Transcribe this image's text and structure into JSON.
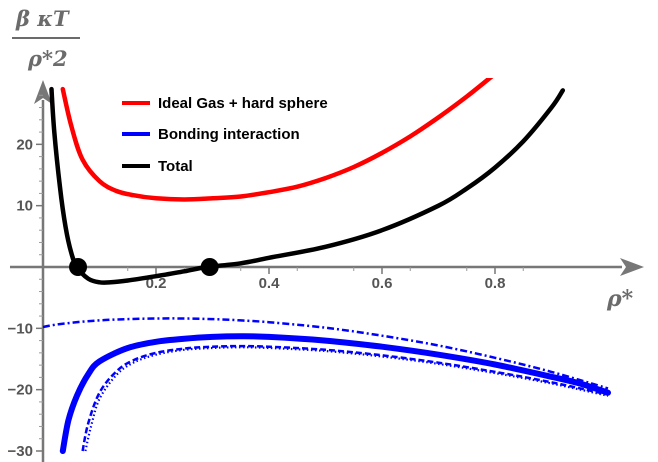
{
  "chart_data": {
    "type": "line",
    "xlabel": "ρ*",
    "ylabel_num": "β κT",
    "ylabel_den": "ρ*2",
    "xlim": [
      -0.05,
      1.0
    ],
    "ylim": [
      -30,
      29
    ],
    "x_ticks": [
      0.2,
      0.4,
      0.6,
      0.8
    ],
    "x_tick_labels": [
      "0.2",
      "0.4",
      "0.6",
      "0.8"
    ],
    "y_ticks": [
      -30,
      -20,
      -10,
      10,
      20
    ],
    "y_tick_labels": [
      "−30",
      "−20",
      "−10",
      "10",
      "20"
    ],
    "grid": false,
    "legend_position": "top-left",
    "legend": [
      {
        "name": "Ideal Gas + hard sphere",
        "color": "#ff0000"
      },
      {
        "name": "Bonding interaction",
        "color": "#0000ff"
      },
      {
        "name": "Total",
        "color": "#000000"
      }
    ],
    "series": [
      {
        "name": "Ideal Gas + hard sphere",
        "color": "#ff0000",
        "style": "solid",
        "x": [
          0.035,
          0.05,
          0.07,
          0.1,
          0.13,
          0.16,
          0.2,
          0.25,
          0.3,
          0.35,
          0.4,
          0.45,
          0.5,
          0.55,
          0.6,
          0.65,
          0.7,
          0.75,
          0.8
        ],
        "y": [
          29,
          23,
          17.5,
          14,
          12.4,
          11.7,
          11.2,
          11.0,
          11.2,
          11.5,
          12.2,
          13.1,
          14.5,
          16.3,
          18.6,
          21.3,
          24.4,
          27.8,
          31.5
        ]
      },
      {
        "name": "Bonding interaction",
        "color": "#0000ff",
        "style": "solid-thick",
        "x": [
          0.035,
          0.045,
          0.06,
          0.08,
          0.1,
          0.15,
          0.2,
          0.25,
          0.3,
          0.35,
          0.4,
          0.5,
          0.6,
          0.7,
          0.8,
          0.9,
          0.95,
          1.0
        ],
        "y": [
          -30,
          -25,
          -21,
          -17.5,
          -15.4,
          -13.2,
          -12.2,
          -11.7,
          -11.4,
          -11.3,
          -11.4,
          -12.0,
          -13.0,
          -14.3,
          -15.9,
          -17.9,
          -19.0,
          -20.5
        ]
      },
      {
        "name": "Bonding interaction (dash-dot)",
        "color": "#0000ff",
        "style": "dashdot",
        "x": [
          -0.05,
          0.0,
          0.05,
          0.1,
          0.15,
          0.2,
          0.25,
          0.3,
          0.35,
          0.4,
          0.5,
          0.6,
          0.7,
          0.8,
          0.9,
          1.0
        ],
        "y": [
          -11.5,
          -9.8,
          -9.1,
          -8.7,
          -8.5,
          -8.4,
          -8.4,
          -8.5,
          -8.7,
          -9.0,
          -9.9,
          -11.2,
          -12.8,
          -14.8,
          -17.1,
          -19.8
        ]
      },
      {
        "name": "Bonding interaction (dashed)",
        "color": "#0000ff",
        "style": "dashed",
        "x": [
          0.07,
          0.08,
          0.1,
          0.13,
          0.16,
          0.2,
          0.25,
          0.3,
          0.35,
          0.4,
          0.5,
          0.6,
          0.7,
          0.8,
          0.9,
          1.0
        ],
        "y": [
          -30,
          -25.5,
          -20.5,
          -17.0,
          -15.2,
          -14.0,
          -13.3,
          -13.0,
          -12.9,
          -13.0,
          -13.5,
          -14.4,
          -15.6,
          -17.1,
          -18.8,
          -20.8
        ]
      },
      {
        "name": "Bonding interaction (dotted)",
        "color": "#0000ff",
        "style": "dotted",
        "x": [
          0.075,
          0.085,
          0.1,
          0.13,
          0.16,
          0.2,
          0.25,
          0.3,
          0.35,
          0.4,
          0.5,
          0.6,
          0.7,
          0.8,
          0.9,
          1.0
        ],
        "y": [
          -30,
          -26,
          -21.5,
          -17.6,
          -15.6,
          -14.3,
          -13.5,
          -13.2,
          -13.1,
          -13.2,
          -13.7,
          -14.6,
          -15.8,
          -17.3,
          -19.0,
          -21.0
        ]
      },
      {
        "name": "Total",
        "color": "#000000",
        "style": "solid",
        "x": [
          0.015,
          0.02,
          0.03,
          0.04,
          0.05,
          0.06,
          0.08,
          0.1,
          0.12,
          0.15,
          0.2,
          0.25,
          0.29,
          0.35,
          0.4,
          0.5,
          0.6,
          0.7,
          0.75,
          0.8,
          0.85,
          0.9,
          0.92
        ],
        "y": [
          29,
          22,
          13,
          6.5,
          2.3,
          0.0,
          -1.9,
          -2.5,
          -2.5,
          -2.2,
          -1.5,
          -0.7,
          0.0,
          0.6,
          1.5,
          3.3,
          6.0,
          10.0,
          12.8,
          16.2,
          20.5,
          26.0,
          28.8
        ]
      }
    ],
    "markers": [
      {
        "x": 0.062,
        "y": 0
      },
      {
        "x": 0.295,
        "y": 0
      }
    ]
  }
}
